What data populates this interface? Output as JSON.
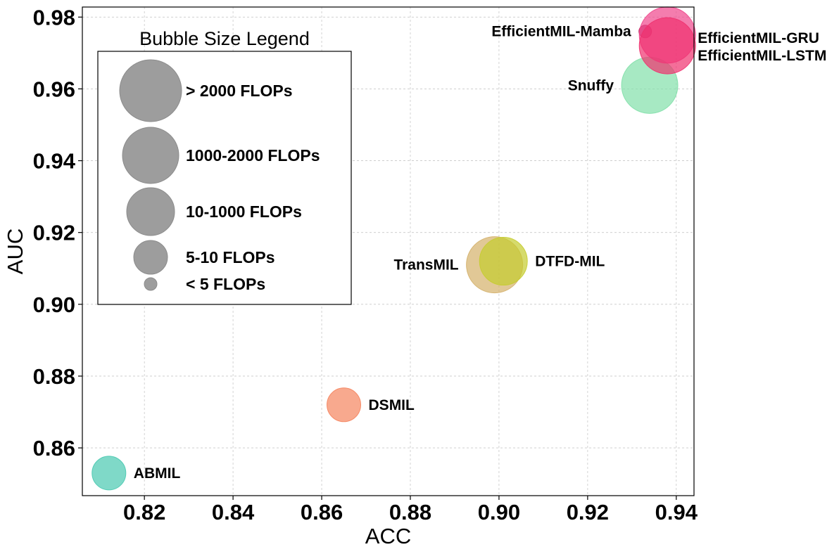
{
  "chart_data": {
    "type": "scatter",
    "subtype": "bubble",
    "title": "",
    "xlabel": "ACC",
    "ylabel": "AUC",
    "xlim": [
      0.806,
      0.944
    ],
    "ylim": [
      0.8467,
      0.9828
    ],
    "xticks": [
      {
        "value": 0.82,
        "label": "0.82"
      },
      {
        "value": 0.84,
        "label": "0.84"
      },
      {
        "value": 0.86,
        "label": "0.86"
      },
      {
        "value": 0.88,
        "label": "0.88"
      },
      {
        "value": 0.9,
        "label": "0.90"
      },
      {
        "value": 0.92,
        "label": "0.92"
      },
      {
        "value": 0.94,
        "label": "0.94"
      }
    ],
    "yticks": [
      {
        "value": 0.86,
        "label": "0.86"
      },
      {
        "value": 0.88,
        "label": "0.88"
      },
      {
        "value": 0.9,
        "label": "0.90"
      },
      {
        "value": 0.92,
        "label": "0.92"
      },
      {
        "value": 0.94,
        "label": "0.94"
      },
      {
        "value": 0.96,
        "label": "0.96"
      },
      {
        "value": 0.98,
        "label": "0.98"
      }
    ],
    "grid": true,
    "points": [
      {
        "name": "ABMIL",
        "acc": 0.812,
        "auc": 0.853,
        "size_category": "5-10 FLOPs",
        "color": "#48c9b0",
        "label_side": "right"
      },
      {
        "name": "DSMIL",
        "acc": 0.865,
        "auc": 0.872,
        "size_category": "5-10 FLOPs",
        "color": "#f5845e",
        "label_side": "right"
      },
      {
        "name": "TransMIL",
        "acc": 0.899,
        "auc": 0.911,
        "size_category": "1000-2000 FLOPs",
        "color": "#d4b06a",
        "label_side": "left"
      },
      {
        "name": "DTFD-MIL",
        "acc": 0.901,
        "auc": 0.912,
        "size_category": "10-1000 FLOPs",
        "color": "#c5cc2e",
        "label_side": "right"
      },
      {
        "name": "Snuffy",
        "acc": 0.934,
        "auc": 0.961,
        "size_category": "1000-2000 FLOPs",
        "color": "#82e0aa",
        "label_side": "left"
      },
      {
        "name": "EfficientMIL-Mamba",
        "acc": 0.933,
        "auc": 0.976,
        "size_category": "< 5 FLOPs",
        "color": "#b0124e",
        "label_side": "left"
      },
      {
        "name": "EfficientMIL-GRU",
        "acc": 0.938,
        "auc": 0.975,
        "size_category": "1000-2000 FLOPs",
        "color": "#f0468c",
        "label_side": "right-up"
      },
      {
        "name": "EfficientMIL-LSTM",
        "acc": 0.938,
        "auc": 0.972,
        "size_category": "1000-2000 FLOPs",
        "color": "#f0306e",
        "label_side": "right-down"
      }
    ],
    "legend": {
      "title": "Bubble Size Legend",
      "placement": "top-left",
      "color": "#8c8c8c",
      "items": [
        {
          "label": "> 2000 FLOPs",
          "size_category": "> 2000 FLOPs"
        },
        {
          "label": "1000-2000 FLOPs",
          "size_category": "1000-2000 FLOPs"
        },
        {
          "label": "10-1000 FLOPs",
          "size_category": "10-1000 FLOPs"
        },
        {
          "label": "5-10 FLOPs",
          "size_category": "5-10 FLOPs"
        },
        {
          "label": "< 5 FLOPs",
          "size_category": "< 5 FLOPs"
        }
      ]
    }
  }
}
